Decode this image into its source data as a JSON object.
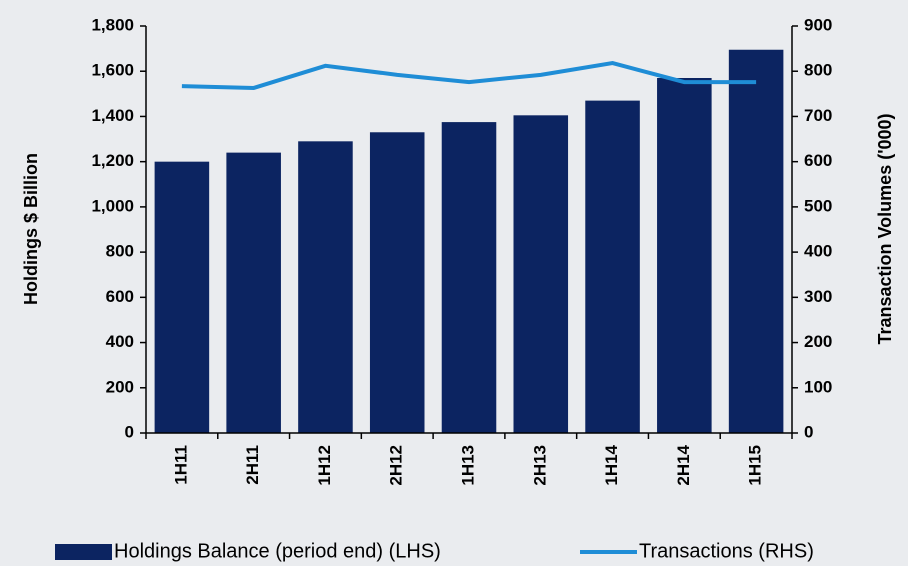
{
  "chart_data": {
    "type": "bar-line",
    "categories": [
      "1H11",
      "2H11",
      "1H12",
      "2H12",
      "1H13",
      "2H13",
      "1H14",
      "2H14",
      "1H15"
    ],
    "series": [
      {
        "name": "Holdings Balance (period end) (LHS)",
        "type": "bar",
        "color": "#0c2461",
        "values": [
          1200,
          1240,
          1290,
          1330,
          1375,
          1405,
          1470,
          1570,
          1695
        ]
      },
      {
        "name": "Transactions (RHS)",
        "type": "line",
        "axis": "y2",
        "color": "#1f8dd6",
        "values": [
          767,
          763,
          812,
          792,
          776,
          792,
          818,
          776,
          776
        ]
      }
    ],
    "ylabel": "Holdings $ Billion",
    "y2label": "Transaction Volumes ('000)",
    "ylim": [
      0,
      1800
    ],
    "yticks": [
      0,
      200,
      400,
      600,
      800,
      {
        "value": 1000,
        "label": "1,000"
      },
      {
        "value": 1200,
        "label": "1,200"
      },
      {
        "value": 1400,
        "label": "1,400"
      },
      {
        "value": 1600,
        "label": "1,600"
      },
      {
        "value": 1800,
        "label": "1,800"
      }
    ],
    "y2lim": [
      0,
      900
    ],
    "y2ticks": [
      0,
      100,
      200,
      300,
      400,
      500,
      600,
      700,
      800,
      900
    ],
    "legend": "bottom"
  }
}
